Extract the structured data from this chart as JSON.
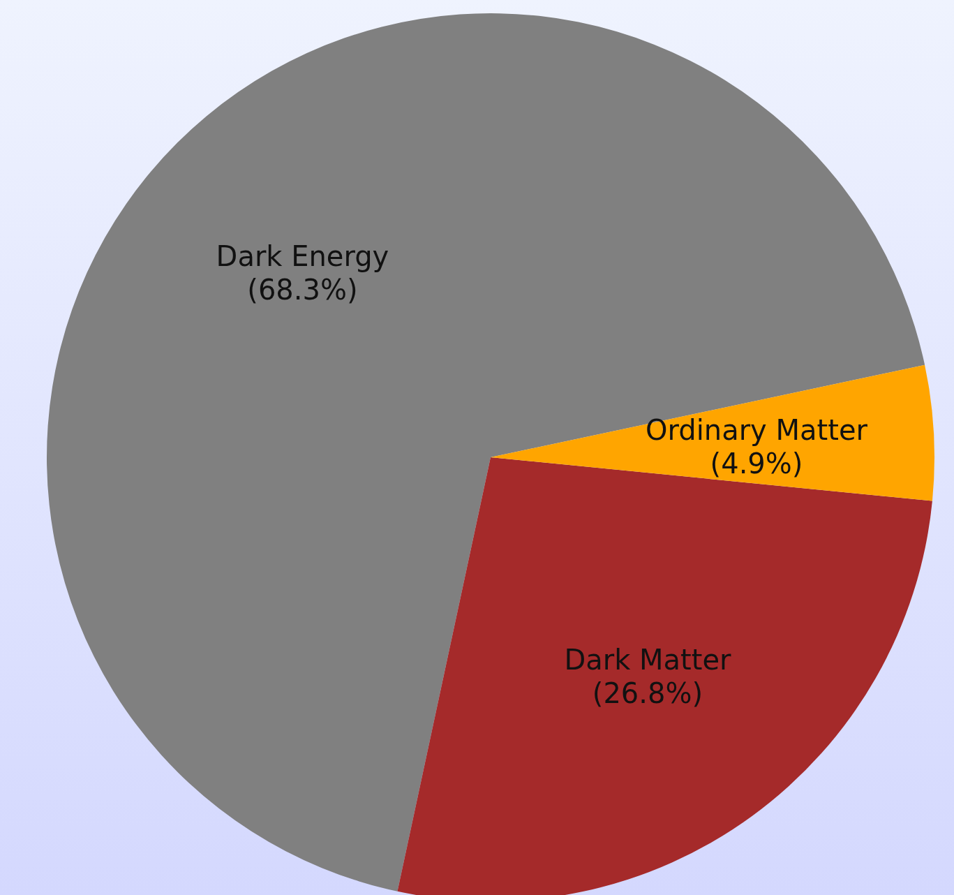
{
  "chart_data": {
    "type": "pie",
    "categories": [
      "Dark Energy",
      "Dark Matter",
      "Ordinary Matter"
    ],
    "values": [
      68.3,
      26.8,
      4.9
    ],
    "colors": [
      "#808080",
      "#a52a2a",
      "#ffa500"
    ],
    "value_labels": [
      "(68.3%)",
      "(26.8%)",
      "(4.9%)"
    ]
  }
}
